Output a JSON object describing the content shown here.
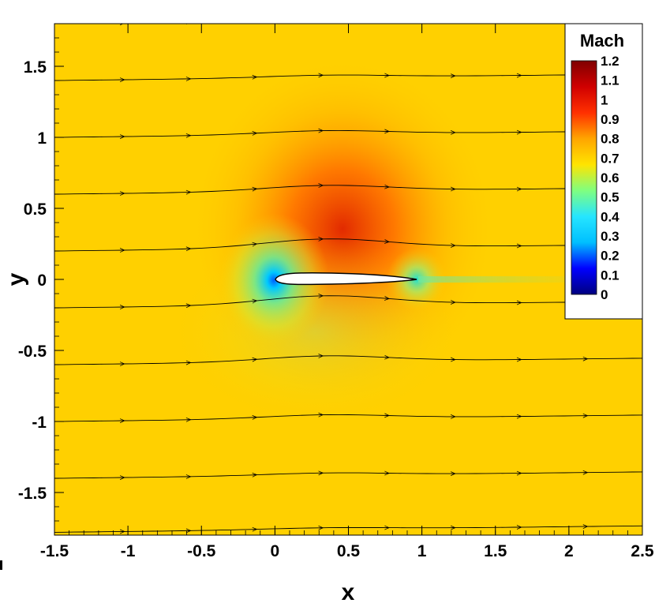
{
  "chart_data": {
    "type": "heatmap",
    "field": "Mach",
    "xlabel": "x",
    "ylabel": "y",
    "xlim": [
      -1.5,
      2.5
    ],
    "ylim": [
      -1.8,
      1.8
    ],
    "xticks": [
      -1.5,
      -1,
      -0.5,
      0,
      0.5,
      1,
      1.5,
      2,
      2.5
    ],
    "xtick_labels": [
      "-1.5",
      "-1",
      "-0.5",
      "0",
      "0.5",
      "1",
      "1.5",
      "2",
      "2.5"
    ],
    "yticks": [
      1.5,
      1,
      0.5,
      0,
      -0.5,
      -1,
      -1.5
    ],
    "ytick_labels": [
      "1.5",
      "1",
      "0.5",
      "0",
      "-0.5",
      "-1",
      "-1.5"
    ],
    "colorbar": {
      "title": "Mach",
      "min": 0,
      "max": 1.2,
      "levels": [
        1.2,
        1.1,
        1,
        0.9,
        0.8,
        0.7,
        0.6,
        0.5,
        0.4,
        0.3,
        0.2,
        0.1,
        0
      ],
      "level_labels": [
        "1.2",
        "1.1",
        "1",
        "0.9",
        "0.8",
        "0.7",
        "0.6",
        "0.5",
        "0.4",
        "0.3",
        "0.2",
        "0.1",
        "0"
      ],
      "colormap": [
        "#00007f",
        "#0000ff",
        "#00bfff",
        "#26e5ff",
        "#7fff80",
        "#ffe400",
        "#ffa500",
        "#ff3000",
        "#d00000",
        "#800000"
      ],
      "legend_position": "top-right"
    },
    "freestream_mach": 0.8,
    "airfoil": {
      "leading_edge_x": 0,
      "trailing_edge_x": 1,
      "angle_of_attack_deg": 2
    },
    "streamlines_y_at_inlet": [
      1.8,
      1.4,
      1.0,
      0.6,
      0.2,
      -0.2,
      -0.6,
      -1.0,
      -1.4,
      -1.78
    ]
  }
}
